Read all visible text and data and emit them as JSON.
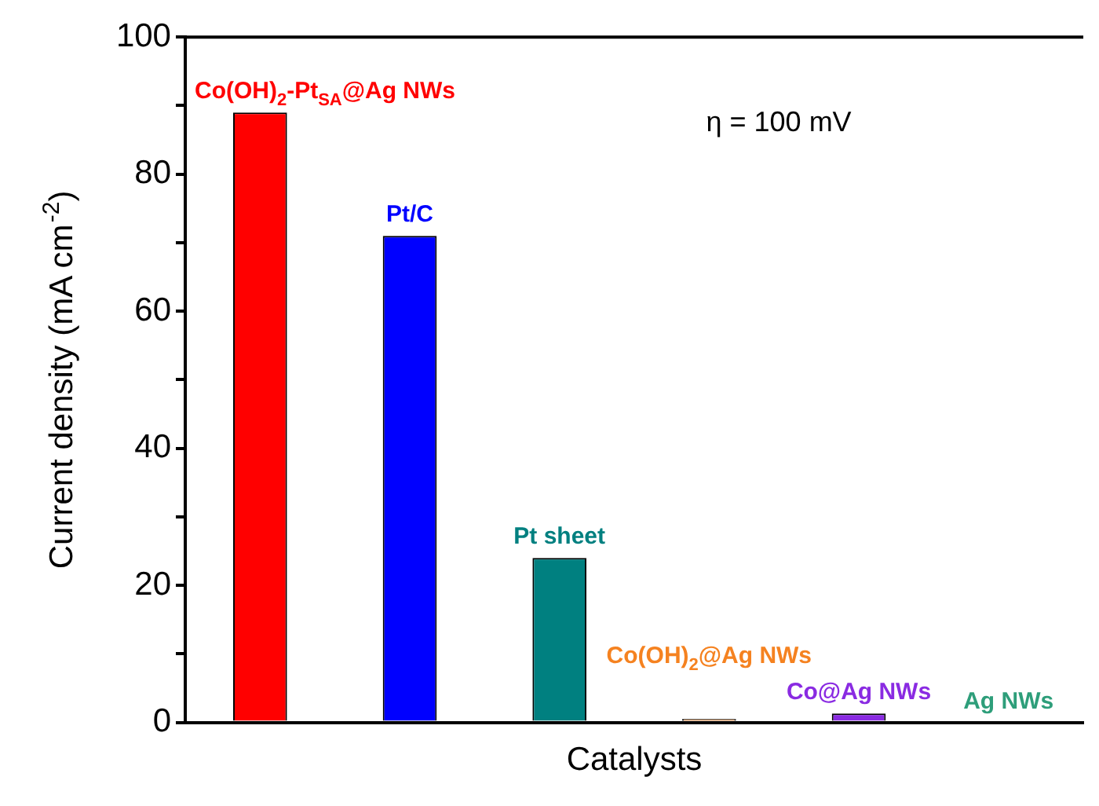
{
  "chart_data": {
    "type": "bar",
    "xlabel": "Catalysts",
    "ylabel": "Current density (mA cm$^{-2}$)",
    "categories": [
      "Co(OH)$_{2}$-Pt$_{SA}$@Ag NWs",
      "Pt/C",
      "Pt sheet",
      "Co(OH)$_{2}$@Ag NWs",
      "Co@Ag NWs",
      "Ag NWs"
    ],
    "values": [
      89,
      71,
      24,
      0.5,
      1.3,
      0
    ],
    "colors": [
      "#ff0000",
      "#0000ff",
      "#008080",
      "#f58220",
      "#8a2be2",
      "#2e9e7a"
    ],
    "ylim": [
      0,
      100
    ],
    "yticks": [
      0,
      {
        "value": 10,
        "label": null
      },
      20,
      {
        "value": 30,
        "label": null
      },
      40,
      {
        "value": 50,
        "label": null
      },
      60,
      {
        "value": 70,
        "label": null
      },
      80,
      {
        "value": 90,
        "label": null
      },
      100
    ],
    "tick_labels": "y",
    "legend": false,
    "annotations": [
      "η = 100 mV"
    ]
  }
}
